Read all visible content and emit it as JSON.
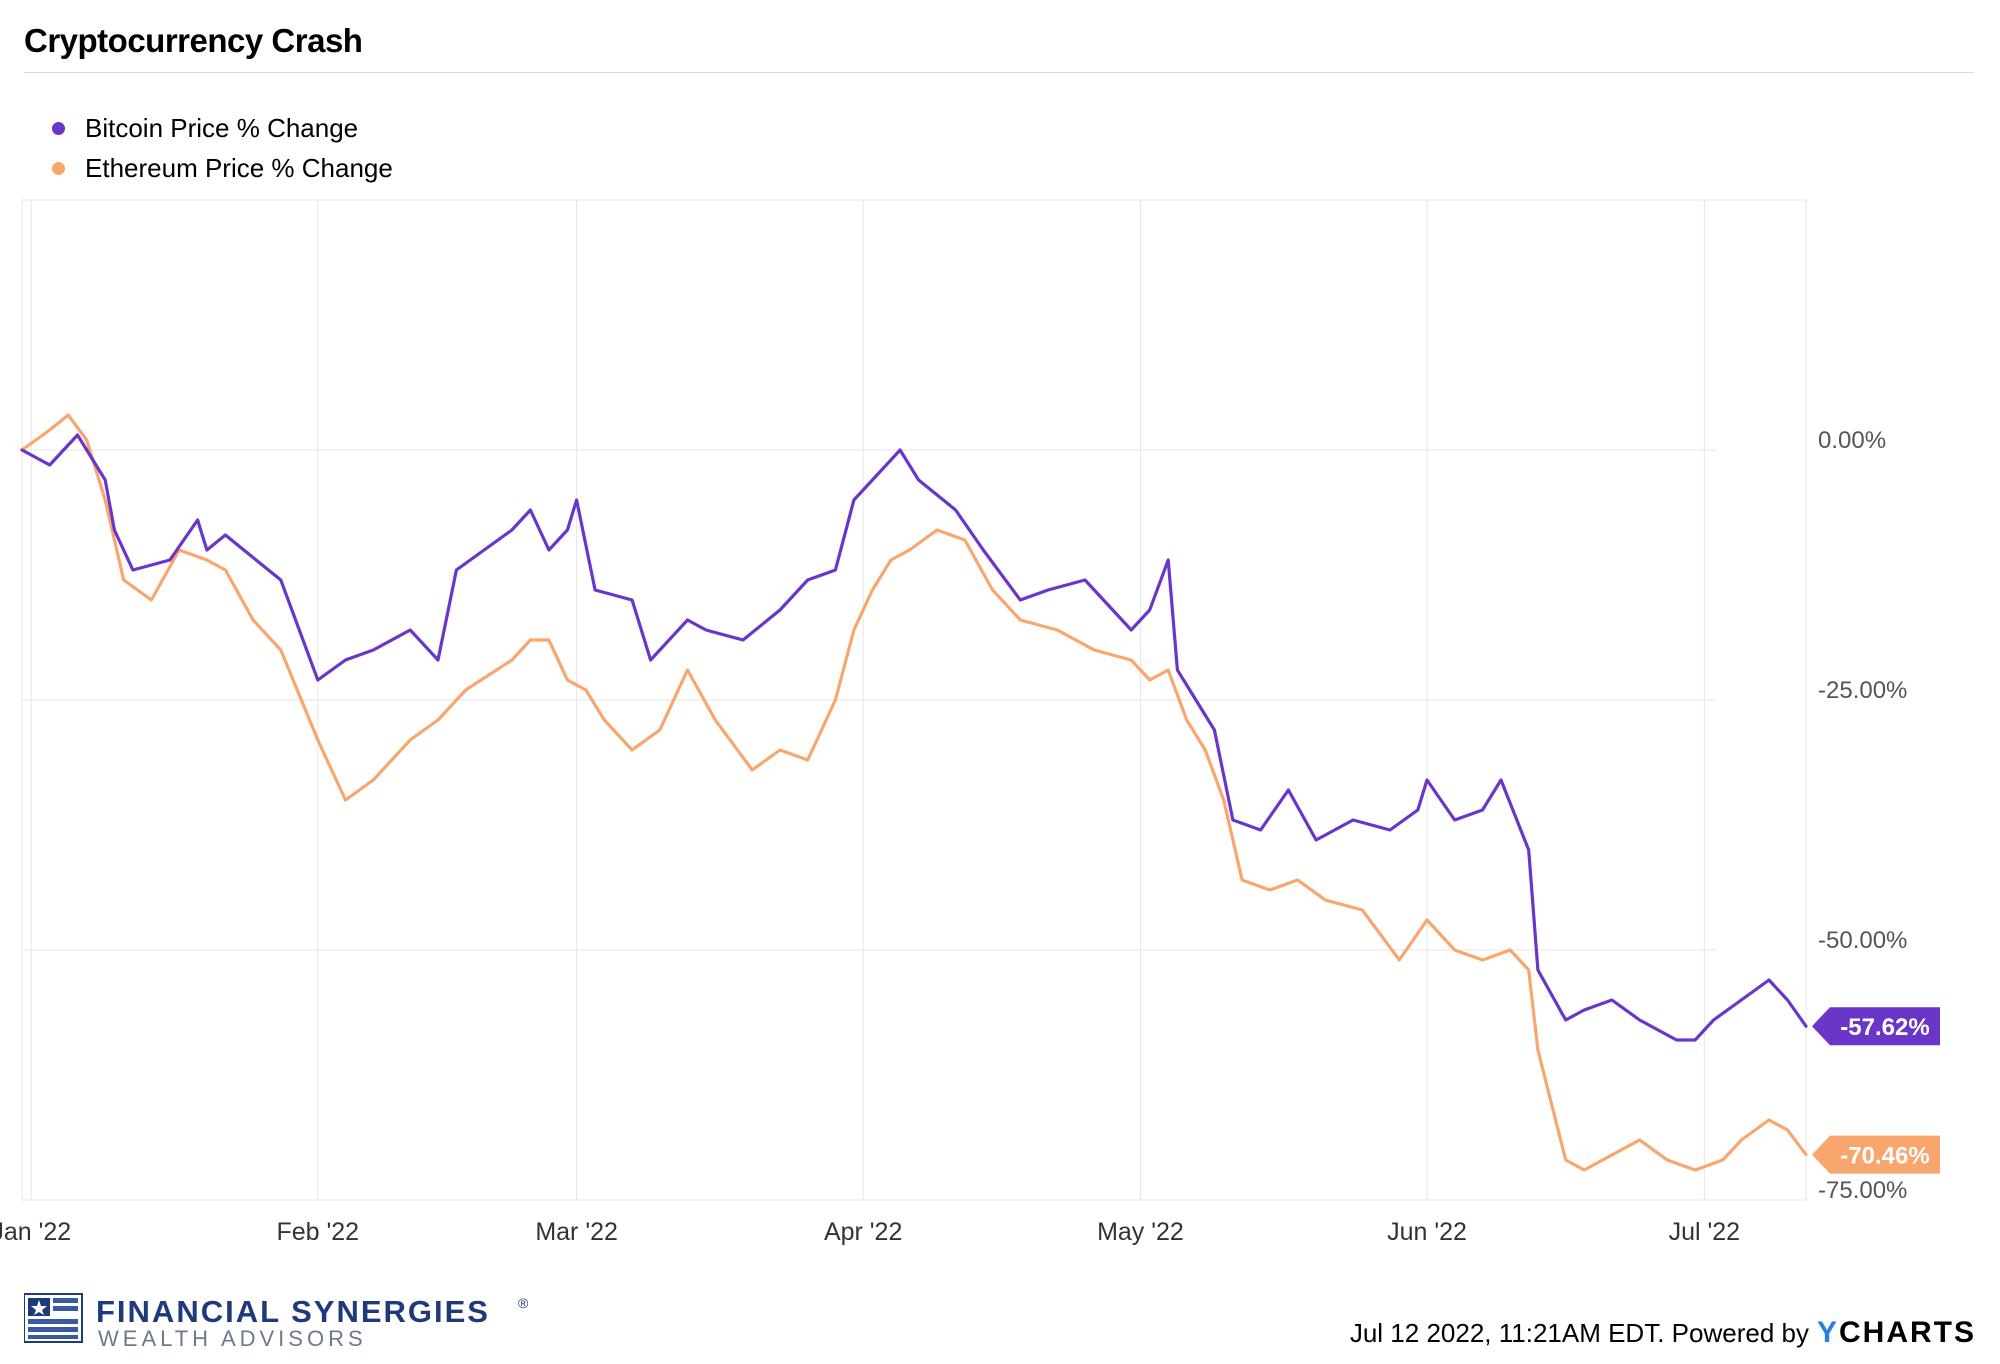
{
  "title": "Cryptocurrency Crash",
  "footer": {
    "brand_line1": "FINANCIAL SYNERGIES",
    "brand_registered": "®",
    "brand_line2": "WEALTH ADVISORS",
    "timestamp": "Jul 12 2022, 11:21AM EDT.",
    "powered_by": "Powered by",
    "ycharts_y": "Y",
    "ycharts_rest": "CHARTS"
  },
  "colors": {
    "bitcoin": "#6a35c9",
    "ethereum": "#f9a66e",
    "grid": "#e6e6e6",
    "brand": "#1f3a7a"
  },
  "chart_data": {
    "type": "line",
    "title": "Cryptocurrency Crash",
    "y_tick_labels": [
      "0.00%",
      "-25.00%",
      "-50.00%",
      "-75.00%"
    ],
    "y_ticks": [
      0,
      -25,
      -50,
      -75
    ],
    "ylim": [
      -75,
      25
    ],
    "x_tick_labels": [
      "Jan '22",
      "Feb '22",
      "Mar '22",
      "Apr '22",
      "May '22",
      "Jun '22",
      "Jul '22"
    ],
    "x_ticks": [
      "2022-01-01",
      "2022-02-01",
      "2022-03-01",
      "2022-04-01",
      "2022-05-01",
      "2022-06-01",
      "2022-07-01"
    ],
    "xlim": [
      "2021-12-31",
      "2022-07-12"
    ],
    "grid": true,
    "legend_position": "top-left",
    "end_labels": [
      "-57.62%",
      "-70.46%"
    ],
    "series": [
      {
        "name": "Bitcoin Price % Change",
        "color": "#6a35c9",
        "x": [
          "2021-12-31",
          "2022-01-03",
          "2022-01-06",
          "2022-01-09",
          "2022-01-10",
          "2022-01-12",
          "2022-01-16",
          "2022-01-19",
          "2022-01-20",
          "2022-01-22",
          "2022-01-24",
          "2022-01-28",
          "2022-02-01",
          "2022-02-04",
          "2022-02-07",
          "2022-02-11",
          "2022-02-14",
          "2022-02-16",
          "2022-02-22",
          "2022-02-24",
          "2022-02-26",
          "2022-02-28",
          "2022-03-01",
          "2022-03-03",
          "2022-03-07",
          "2022-03-09",
          "2022-03-13",
          "2022-03-15",
          "2022-03-19",
          "2022-03-23",
          "2022-03-26",
          "2022-03-29",
          "2022-03-31",
          "2022-04-02",
          "2022-04-05",
          "2022-04-07",
          "2022-04-11",
          "2022-04-14",
          "2022-04-18",
          "2022-04-21",
          "2022-04-25",
          "2022-04-30",
          "2022-05-02",
          "2022-05-04",
          "2022-05-05",
          "2022-05-07",
          "2022-05-09",
          "2022-05-11",
          "2022-05-14",
          "2022-05-17",
          "2022-05-20",
          "2022-05-24",
          "2022-05-28",
          "2022-05-31",
          "2022-06-01",
          "2022-06-04",
          "2022-06-07",
          "2022-06-09",
          "2022-06-12",
          "2022-06-13",
          "2022-06-16",
          "2022-06-18",
          "2022-06-21",
          "2022-06-24",
          "2022-06-28",
          "2022-06-30",
          "2022-07-02",
          "2022-07-05",
          "2022-07-08",
          "2022-07-10",
          "2022-07-12"
        ],
        "values": [
          0,
          -1.5,
          1.5,
          -3,
          -8,
          -12,
          -11,
          -7,
          -10,
          -8.5,
          -10,
          -13,
          -23,
          -21,
          -20,
          -18,
          -21,
          -12,
          -8,
          -6,
          -10,
          -8,
          -5,
          -14,
          -15,
          -21,
          -17,
          -18,
          -19,
          -16,
          -13,
          -12,
          -5,
          -3,
          0,
          -3,
          -6,
          -10,
          -15,
          -14,
          -13,
          -18,
          -16,
          -11,
          -22,
          -25,
          -28,
          -37,
          -38,
          -34,
          -39,
          -37,
          -38,
          -36,
          -33,
          -37,
          -36,
          -33,
          -40,
          -52,
          -57,
          -56,
          -55,
          -57,
          -59,
          -59,
          -57,
          -55,
          -53,
          -55,
          -57.62
        ]
      },
      {
        "name": "Ethereum Price % Change",
        "color": "#f9a66e",
        "x": [
          "2021-12-31",
          "2022-01-03",
          "2022-01-05",
          "2022-01-07",
          "2022-01-09",
          "2022-01-11",
          "2022-01-14",
          "2022-01-17",
          "2022-01-20",
          "2022-01-22",
          "2022-01-25",
          "2022-01-28",
          "2022-02-01",
          "2022-02-04",
          "2022-02-07",
          "2022-02-11",
          "2022-02-14",
          "2022-02-17",
          "2022-02-22",
          "2022-02-24",
          "2022-02-26",
          "2022-02-28",
          "2022-03-02",
          "2022-03-04",
          "2022-03-07",
          "2022-03-10",
          "2022-03-13",
          "2022-03-16",
          "2022-03-20",
          "2022-03-23",
          "2022-03-26",
          "2022-03-29",
          "2022-03-31",
          "2022-04-02",
          "2022-04-04",
          "2022-04-06",
          "2022-04-09",
          "2022-04-12",
          "2022-04-15",
          "2022-04-18",
          "2022-04-22",
          "2022-04-26",
          "2022-04-30",
          "2022-05-02",
          "2022-05-04",
          "2022-05-06",
          "2022-05-08",
          "2022-05-10",
          "2022-05-12",
          "2022-05-15",
          "2022-05-18",
          "2022-05-21",
          "2022-05-25",
          "2022-05-29",
          "2022-06-01",
          "2022-06-04",
          "2022-06-07",
          "2022-06-10",
          "2022-06-12",
          "2022-06-13",
          "2022-06-16",
          "2022-06-18",
          "2022-06-22",
          "2022-06-24",
          "2022-06-27",
          "2022-06-30",
          "2022-07-03",
          "2022-07-05",
          "2022-07-08",
          "2022-07-10",
          "2022-07-12"
        ],
        "values": [
          0,
          2,
          3.5,
          1,
          -5,
          -13,
          -15,
          -10,
          -11,
          -12,
          -17,
          -20,
          -29,
          -35,
          -33,
          -29,
          -27,
          -24,
          -21,
          -19,
          -19,
          -23,
          -24,
          -27,
          -30,
          -28,
          -22,
          -27,
          -32,
          -30,
          -31,
          -25,
          -18,
          -14,
          -11,
          -10,
          -8,
          -9,
          -14,
          -17,
          -18,
          -20,
          -21,
          -23,
          -22,
          -27,
          -30,
          -35,
          -43,
          -44,
          -43,
          -45,
          -46,
          -51,
          -47,
          -50,
          -51,
          -50,
          -52,
          -60,
          -71,
          -72,
          -70,
          -69,
          -71,
          -72,
          -71,
          -69,
          -67,
          -68,
          -70.46
        ]
      }
    ]
  }
}
